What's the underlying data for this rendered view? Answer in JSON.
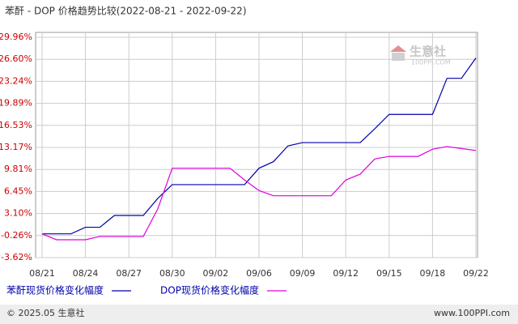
{
  "chart_data": {
    "type": "line",
    "title": "苯酐 - DOP 价格趋势比较(2022-08-21 - 2022-09-22)",
    "categories": [
      "08/21",
      null,
      null,
      "08/24",
      null,
      null,
      "08/27",
      null,
      null,
      "08/30",
      null,
      null,
      "09/02",
      null,
      null,
      "09/06",
      null,
      null,
      "09/09",
      null,
      null,
      "09/12",
      null,
      null,
      "09/15",
      null,
      null,
      "09/18",
      null,
      null,
      "09/22"
    ],
    "series": [
      {
        "name": "苯酐现货价格变化幅度",
        "color": "#0000aa",
        "values": [
          0,
          0,
          0,
          1.0,
          1.0,
          2.8,
          2.8,
          2.8,
          5.4,
          7.5,
          7.5,
          7.5,
          7.5,
          7.5,
          7.5,
          10.0,
          11.0,
          13.4,
          13.9,
          13.9,
          13.9,
          13.9,
          13.9,
          16.0,
          18.2,
          18.2,
          18.2,
          18.2,
          23.7,
          23.7,
          26.8
        ]
      },
      {
        "name": "DOP现货价格变化幅度",
        "color": "#dd00dd",
        "values": [
          0,
          -0.9,
          -0.9,
          -0.9,
          -0.4,
          -0.4,
          -0.4,
          -0.4,
          3.8,
          10.0,
          10.0,
          10.0,
          10.0,
          10.0,
          8.2,
          6.6,
          5.8,
          5.8,
          5.8,
          5.8,
          5.8,
          8.2,
          9.1,
          11.4,
          11.8,
          11.8,
          11.8,
          12.9,
          13.3,
          13.0,
          12.7
        ]
      }
    ],
    "ylim": [
      -3.62,
      29.96
    ],
    "yticks": [
      {
        "value": -3.62,
        "label": "-3.62%"
      },
      {
        "value": -0.26,
        "label": "-0.26%"
      },
      {
        "value": 3.1,
        "label": "3.10%"
      },
      {
        "value": 6.45,
        "label": "6.45%"
      },
      {
        "value": 9.81,
        "label": "9.81%"
      },
      {
        "value": 13.17,
        "label": "13.17%"
      },
      {
        "value": 16.53,
        "label": "16.53%"
      },
      {
        "value": 19.89,
        "label": "19.89%"
      },
      {
        "value": 23.24,
        "label": "23.24%"
      },
      {
        "value": 26.6,
        "label": "26.60%"
      },
      {
        "value": 29.96,
        "label": "29.96%"
      }
    ],
    "grid": true,
    "watermark": {
      "name": "生意社",
      "site": "100PPI.COM"
    },
    "footer": {
      "left": "© 2025.05 生意社",
      "right": "www.100PPI.com"
    }
  }
}
